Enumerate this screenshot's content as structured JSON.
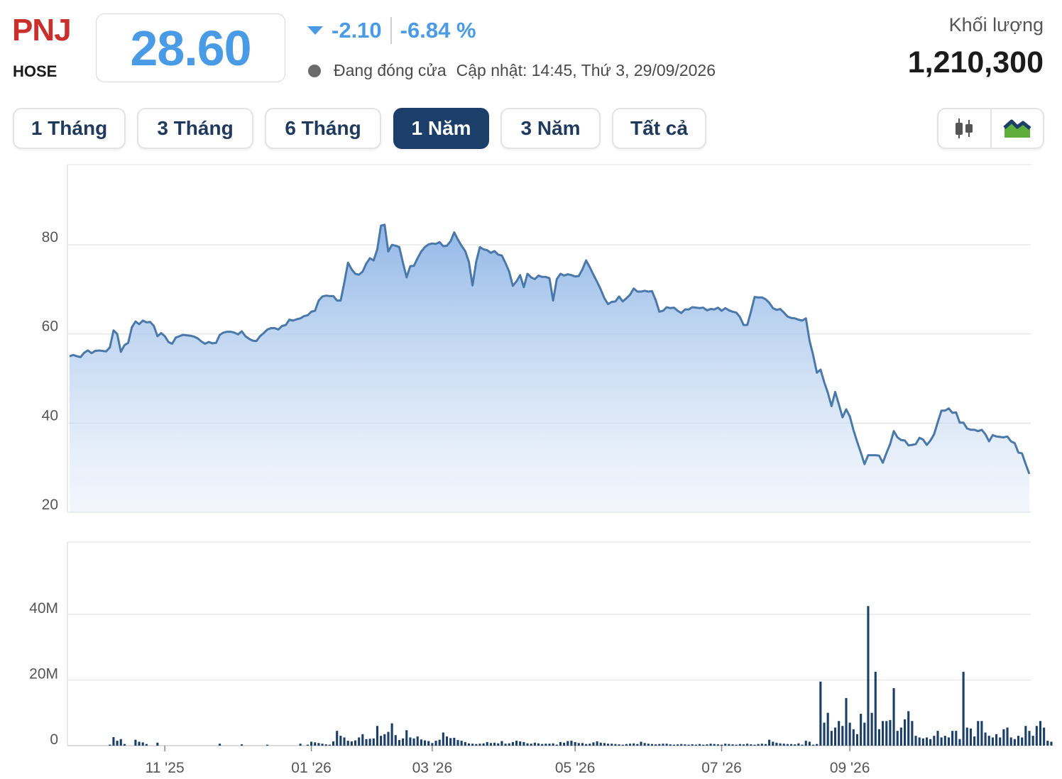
{
  "header": {
    "ticker": "PNJ",
    "exchange": "HOSE",
    "price": "28.60",
    "change": "-2.10",
    "change_pct": "-6.84 %",
    "status": "Đang đóng cửa",
    "updated": "Cập nhật: 14:45, Thứ 3, 29/09/2026",
    "volume_label": "Khối lượng",
    "volume_value": "1,210,300"
  },
  "ranges": [
    {
      "label": "1 Tháng",
      "active": false
    },
    {
      "label": "3 Tháng",
      "active": false
    },
    {
      "label": "6 Tháng",
      "active": false
    },
    {
      "label": "1 Năm",
      "active": true
    },
    {
      "label": "3 Năm",
      "active": false
    },
    {
      "label": "Tất cả",
      "active": false
    }
  ],
  "chart_toggle": {
    "candlestick_icon": "candlestick-icon",
    "area_icon": "mountain-area-icon",
    "selected": "area"
  },
  "colors": {
    "accent": "#4a9be6",
    "ticker": "#c9302c",
    "line": "#4a78a8",
    "volume_bar": "#1b3f69",
    "active_button": "#1b3f69"
  },
  "chart_data": [
    {
      "type": "area",
      "title": "",
      "ylim": [
        20,
        98
      ],
      "yticks": [
        20,
        40,
        60,
        80
      ],
      "xticks": [
        "11 '25",
        "01 '26",
        "03 '26",
        "05 '26",
        "07 '26",
        "09 '26"
      ],
      "x_tick_positions": [
        26,
        66,
        99,
        138,
        178,
        213
      ],
      "grid": true,
      "values": [
        55,
        55.3,
        55,
        54.8,
        55.8,
        56.3,
        55.7,
        56.2,
        56.3,
        56.2,
        56.1,
        57,
        60.8,
        60,
        56,
        57.5,
        58,
        61.5,
        62.8,
        62.2,
        63,
        62.6,
        62.7,
        61.8,
        59.5,
        60.2,
        59.5,
        58.2,
        57.8,
        59.2,
        59.5,
        59.8,
        59.7,
        59.6,
        59.4,
        59,
        58.3,
        57.8,
        58.2,
        57.9,
        58,
        59.8,
        60.3,
        60.5,
        60.5,
        60.3,
        59.9,
        60.6,
        59.5,
        58.9,
        58.5,
        58.4,
        59.5,
        60.2,
        61,
        61.3,
        61.3,
        61,
        61.8,
        62,
        63.2,
        63,
        63.3,
        63.5,
        64,
        64.2,
        65,
        65.2,
        67.5,
        68.4,
        68.6,
        68.5,
        68.5,
        67.5,
        67.5,
        71.5,
        76,
        74.5,
        73.5,
        73.3,
        74,
        75.8,
        77,
        76.5,
        79,
        84.3,
        84.5,
        78.5,
        80,
        79.8,
        79.5,
        76,
        72.7,
        75.2,
        75.3,
        77,
        78.5,
        79.5,
        80.1,
        80.3,
        80.2,
        80.6,
        79.7,
        79.8,
        80.8,
        82.8,
        81.2,
        79.8,
        78.6,
        76.2,
        70.9,
        76.2,
        79.5,
        79,
        78.8,
        78.2,
        78.6,
        77.8,
        77.6,
        75.9,
        74,
        70.8,
        71.8,
        73.2,
        70.5,
        73.5,
        72.7,
        72.3,
        73.1,
        72.8,
        72.8,
        72.5,
        67.5,
        72.3,
        73.5,
        73.1,
        73.4,
        73.2,
        72.9,
        73,
        74.5,
        76.5,
        75,
        73.3,
        71.7,
        70,
        68,
        66.7,
        67.2,
        67.3,
        68.4,
        67.3,
        68,
        68.8,
        70.2,
        69.5,
        69.5,
        69.7,
        69.5,
        69.6,
        67.6,
        65,
        65.2,
        66,
        65.8,
        65.9,
        65.2,
        64.7,
        65.5,
        65.5,
        66,
        65.9,
        65.8,
        65.9,
        65.3,
        65.6,
        65.5,
        65.9,
        65.2,
        65.8,
        65.3,
        65,
        64.8,
        63.8,
        62,
        62,
        65,
        68.3,
        68.2,
        68.2,
        67.8,
        67,
        65.8,
        65.4,
        65.6,
        64.8,
        63.9,
        63.6,
        63.5,
        63.2,
        63,
        63.5,
        58.5,
        55.2,
        51.3,
        52,
        49.2,
        46.8,
        43.8,
        47,
        44.2,
        41.3,
        43.1,
        41.5,
        38.4,
        35.8,
        33.4,
        30.8,
        32.8,
        32.8,
        32.8,
        32.7,
        31.1,
        33.3,
        35.3,
        38.2,
        36.8,
        36.2,
        36.1,
        35,
        35.1,
        35.3,
        36.7,
        36.3,
        35.1,
        36.1,
        37.5,
        40.2,
        42.8,
        42.8,
        43.3,
        42.3,
        42.4,
        40.1,
        40.1,
        38.8,
        38.5,
        38.5,
        38.2,
        38.5,
        37.5,
        35.9,
        37.3,
        37,
        36.9,
        36.8,
        37,
        35.9,
        35.5,
        33.4,
        33.2,
        30.8,
        28.6
      ],
      "note_units": "price in thousand VND"
    },
    {
      "type": "bar",
      "title": "",
      "ylim": [
        0,
        62
      ],
      "yticks": [
        0,
        20,
        40
      ],
      "ytick_labels": [
        "0",
        "20M",
        "40M"
      ],
      "values": [
        0,
        0,
        0,
        0,
        0,
        0,
        0,
        0,
        0,
        0,
        0,
        0.3,
        2.6,
        1.5,
        2,
        0.5,
        0,
        0,
        1.8,
        1.2,
        1,
        0.5,
        0,
        0,
        0.9,
        0,
        0,
        0,
        0,
        0,
        0,
        0,
        0,
        0,
        0,
        0,
        0,
        0,
        0,
        0,
        0,
        0.6,
        0,
        0,
        0,
        0,
        0,
        0.4,
        0,
        0,
        0,
        0,
        0,
        0,
        0.3,
        0,
        0,
        0,
        0,
        0,
        0,
        0,
        0,
        0.6,
        0,
        0.3,
        1.2,
        1,
        0.8,
        0.6,
        0.4,
        0.3,
        1.3,
        4.5,
        3,
        2.5,
        1.5,
        1.3,
        1.6,
        2.5,
        3.5,
        2,
        2.1,
        2.2,
        6,
        3,
        3.5,
        4.2,
        6.8,
        3.2,
        1.7,
        2.2,
        4.7,
        2.5,
        2.2,
        2.8,
        1.9,
        1.6,
        1.4,
        0.8,
        1.5,
        1.8,
        4,
        2.8,
        2.3,
        2.4,
        1.7,
        1.5,
        1.1,
        0.7,
        0.6,
        0.5,
        0.6,
        0.7,
        1.1,
        0.8,
        0.9,
        0.7,
        1.4,
        0.6,
        0.7,
        1.1,
        1.5,
        1.3,
        1.1,
        0.7,
        0.6,
        0.9,
        0.7,
        0.5,
        0.6,
        0.6,
        0.7,
        0.3,
        1.1,
        0.9,
        1.4,
        1.5,
        1.1,
        0.8,
        0.8,
        0.5,
        0.6,
        1,
        1.3,
        0.9,
        0.8,
        0.6,
        0.6,
        0.5,
        0.4,
        0.3,
        0.5,
        0.6,
        0.7,
        0.5,
        1.2,
        0.8,
        0.6,
        0.5,
        0.4,
        0.5,
        0.6,
        0.6,
        0.4,
        0.3,
        0.4,
        0.5,
        0.4,
        0.3,
        0.4,
        0.3,
        0.5,
        0.3,
        0.4,
        0.6,
        0.5,
        0.4,
        0.3,
        0.6,
        0.5,
        0.4,
        0.3,
        0.5,
        0.4,
        0.6,
        0.4,
        0.3,
        0.5,
        0.6,
        0.5,
        1.8,
        1.2,
        0.9,
        0.7,
        0.6,
        0.5,
        0.5,
        0.4,
        0.7,
        0.3,
        1.5,
        1.2,
        0.3,
        0.5,
        19.5,
        7,
        10,
        4.5,
        5.5,
        7.5,
        6,
        14.5,
        7,
        5,
        3.5,
        9.7,
        7,
        42.5,
        10,
        22.5,
        5,
        7.5,
        7.5,
        7.8,
        17.5,
        4.5,
        5.5,
        8,
        10.5,
        7.5,
        3,
        2.5,
        2.2,
        2.5,
        2,
        3,
        4.5,
        2.5,
        3,
        2.5,
        4.5,
        4.5,
        2,
        22.5,
        5.5,
        5.2,
        2.8,
        7.5,
        7.5,
        4,
        3,
        2.5,
        3.5,
        2.5,
        5,
        5.5,
        2.5,
        2,
        3,
        2.5,
        6,
        4.5,
        3,
        6,
        7.5,
        5.5,
        1.5,
        1.2
      ]
    }
  ]
}
